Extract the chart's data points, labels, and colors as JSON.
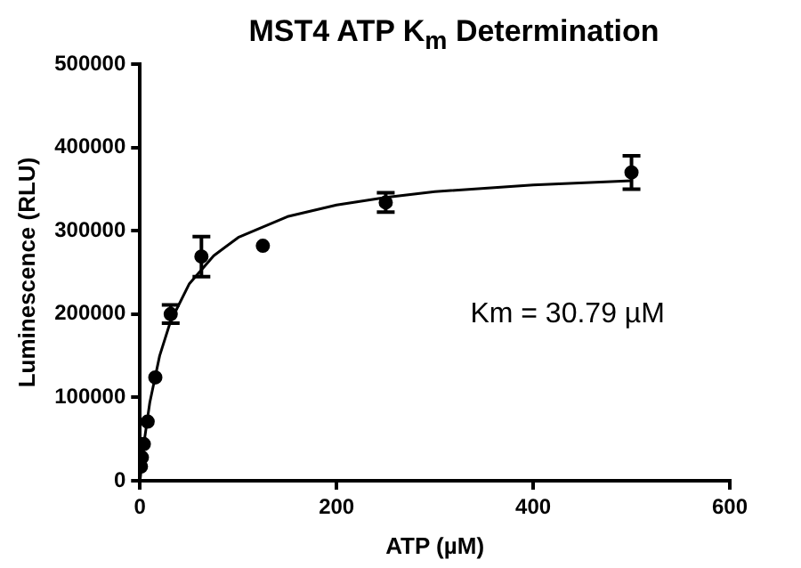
{
  "chart_data": {
    "type": "scatter",
    "title": "MST4 ATP K$_{m}$ Determination",
    "xlabel": "ATP (µM)",
    "ylabel": "Luminescence (RLU)",
    "annotations": [
      "Km = 30.79 µM"
    ],
    "xlim": [
      0,
      600
    ],
    "xticks": [
      0,
      200,
      400,
      600
    ],
    "ylim": [
      0,
      500000
    ],
    "yticks": [
      0,
      100000,
      200000,
      300000,
      400000,
      500000
    ],
    "marker": "circle",
    "grid": false,
    "legend": false,
    "series": [
      {
        "color": "#000000",
        "x": [
          0.98,
          1.95,
          3.9,
          7.8,
          15.6,
          31.25,
          62.5,
          125,
          250,
          500
        ],
        "values": [
          17000,
          28000,
          44000,
          71000,
          124000,
          200000,
          269000,
          282000,
          334000,
          370000
        ],
        "errors": [
          null,
          null,
          null,
          null,
          null,
          11000,
          24000,
          null,
          11500,
          20000
        ]
      },
      {
        "type": "line",
        "color": "#000000",
        "marker": "none",
        "x": [
          0,
          5,
          10,
          20,
          31,
          50,
          75,
          100,
          150,
          200,
          250,
          300,
          400,
          500
        ],
        "values": [
          0,
          53000,
          94000,
          150000,
          191000,
          236000,
          270000,
          292000,
          317000,
          331000,
          340000,
          347000,
          355000,
          360000
        ]
      }
    ]
  }
}
